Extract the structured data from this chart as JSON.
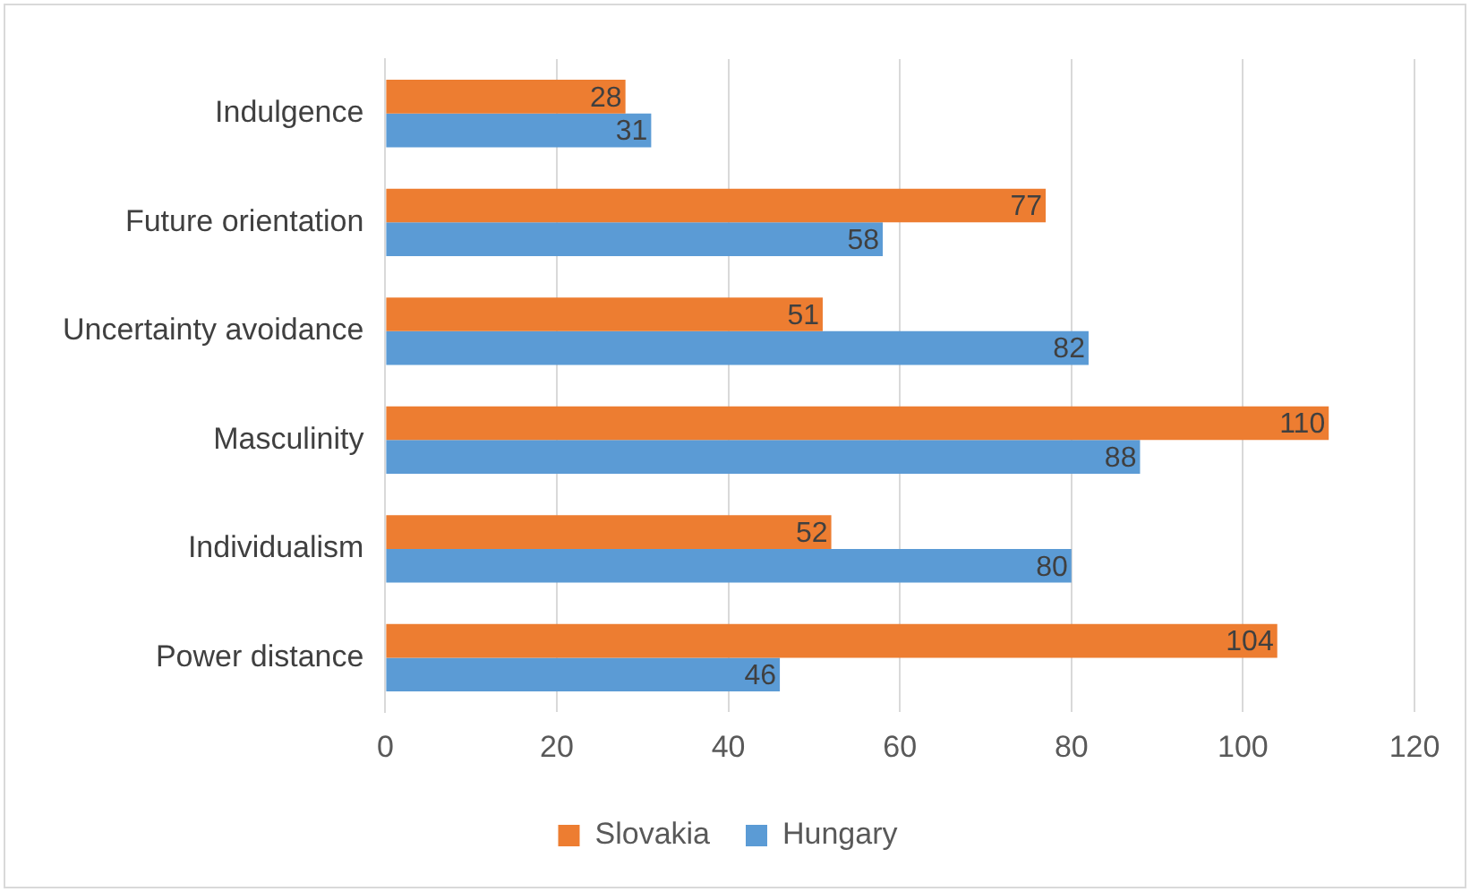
{
  "chart_data": {
    "type": "bar",
    "orientation": "horizontal",
    "categories": [
      "Indulgence",
      "Future orientation",
      "Uncertainty avoidance",
      "Masculinity",
      "Individualism",
      "Power distance"
    ],
    "series": [
      {
        "name": "Slovakia",
        "color": "#ed7d31",
        "values": [
          28,
          77,
          51,
          110,
          52,
          104
        ]
      },
      {
        "name": "Hungary",
        "color": "#5b9bd5",
        "values": [
          31,
          58,
          82,
          88,
          80,
          46
        ]
      }
    ],
    "xlim": [
      0,
      120
    ],
    "xticks": [
      0,
      20,
      40,
      60,
      80,
      100,
      120
    ],
    "grid": "x",
    "legend": "bottom",
    "data_labels": true
  }
}
